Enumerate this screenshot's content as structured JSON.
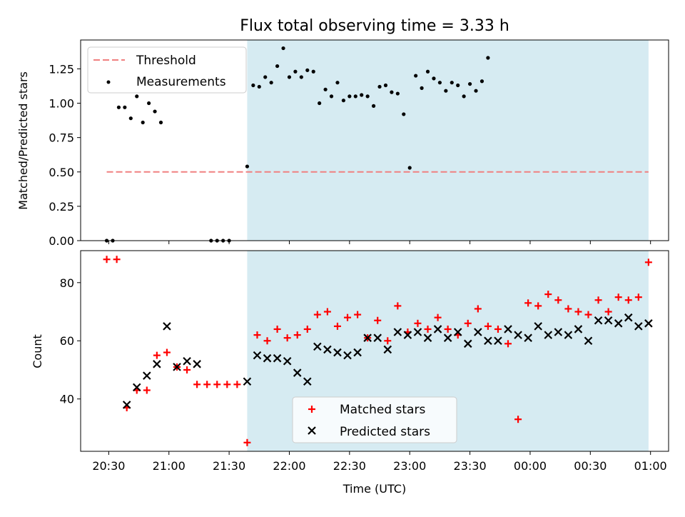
{
  "chart_data": [
    {
      "type": "scatter",
      "title": "Flux total observing time = 3.33 h",
      "ylabel": "Matched/Predicted stars",
      "xlabel": "",
      "xlim": [
        "20:16",
        "01:09"
      ],
      "ylim": [
        0,
        1.46
      ],
      "y_ticks": [
        "0.00",
        "0.25",
        "0.50",
        "0.75",
        "1.00",
        "1.25"
      ],
      "highlight_span": {
        "start": "21:39",
        "end": "00:59",
        "color": "#add8e6"
      },
      "threshold": {
        "name": "Threshold",
        "value": 0.5,
        "x_start": "20:29",
        "x_end": "00:59",
        "color": "#f08080"
      },
      "legend": {
        "position": "upper left",
        "entries": [
          "Threshold",
          "Measurements"
        ]
      },
      "series": [
        {
          "name": "Measurements",
          "color": "#000000",
          "points": [
            [
              "20:29",
              0.0
            ],
            [
              "20:32",
              0.0
            ],
            [
              "20:35",
              0.97
            ],
            [
              "20:38",
              0.97
            ],
            [
              "20:41",
              0.89
            ],
            [
              "20:44",
              1.05
            ],
            [
              "20:47",
              0.86
            ],
            [
              "20:50",
              1.0
            ],
            [
              "20:53",
              0.94
            ],
            [
              "20:56",
              0.86
            ],
            [
              "21:21",
              0.0
            ],
            [
              "21:24",
              0.0
            ],
            [
              "21:27",
              0.0
            ],
            [
              "21:30",
              0.0
            ],
            [
              "21:39",
              0.54
            ],
            [
              "21:42",
              1.13
            ],
            [
              "21:45",
              1.12
            ],
            [
              "21:48",
              1.19
            ],
            [
              "21:51",
              1.15
            ],
            [
              "21:54",
              1.27
            ],
            [
              "21:57",
              1.4
            ],
            [
              "22:00",
              1.19
            ],
            [
              "22:03",
              1.23
            ],
            [
              "22:06",
              1.19
            ],
            [
              "22:09",
              1.24
            ],
            [
              "22:12",
              1.23
            ],
            [
              "22:15",
              1.0
            ],
            [
              "22:18",
              1.1
            ],
            [
              "22:21",
              1.05
            ],
            [
              "22:24",
              1.15
            ],
            [
              "22:27",
              1.02
            ],
            [
              "22:30",
              1.05
            ],
            [
              "22:33",
              1.05
            ],
            [
              "22:36",
              1.06
            ],
            [
              "22:39",
              1.05
            ],
            [
              "22:42",
              0.98
            ],
            [
              "22:45",
              1.12
            ],
            [
              "22:48",
              1.13
            ],
            [
              "22:51",
              1.08
            ],
            [
              "22:54",
              1.07
            ],
            [
              "22:57",
              0.92
            ],
            [
              "23:00",
              0.53
            ],
            [
              "23:03",
              1.2
            ],
            [
              "23:06",
              1.11
            ],
            [
              "23:09",
              1.23
            ],
            [
              "23:12",
              1.18
            ],
            [
              "23:15",
              1.15
            ],
            [
              "23:18",
              1.09
            ],
            [
              "23:21",
              1.15
            ],
            [
              "23:24",
              1.13
            ],
            [
              "23:27",
              1.05
            ],
            [
              "23:30",
              1.14
            ],
            [
              "23:33",
              1.09
            ],
            [
              "23:36",
              1.16
            ],
            [
              "23:39",
              1.33
            ]
          ]
        }
      ]
    },
    {
      "type": "scatter",
      "title": "",
      "ylabel": "Count",
      "xlabel": "Time (UTC)",
      "xlim": [
        "20:16",
        "01:09"
      ],
      "ylim": [
        22,
        91
      ],
      "y_ticks": [
        "40",
        "60",
        "80"
      ],
      "x_ticks": [
        "20:30",
        "21:00",
        "21:30",
        "22:00",
        "22:30",
        "23:00",
        "23:30",
        "00:00",
        "00:30",
        "01:00"
      ],
      "highlight_span": {
        "start": "21:39",
        "end": "00:59",
        "color": "#add8e6"
      },
      "legend": {
        "position": "lower center",
        "entries": [
          "Matched stars",
          "Predicted stars"
        ]
      },
      "series": [
        {
          "name": "Matched stars",
          "marker": "+",
          "color": "#ff0000",
          "points": [
            [
              "20:29",
              88
            ],
            [
              "20:34",
              88
            ],
            [
              "20:39",
              37
            ],
            [
              "20:44",
              43
            ],
            [
              "20:49",
              43
            ],
            [
              "20:54",
              55
            ],
            [
              "20:59",
              56
            ],
            [
              "21:04",
              51
            ],
            [
              "21:09",
              50
            ],
            [
              "21:14",
              45
            ],
            [
              "21:19",
              45
            ],
            [
              "21:24",
              45
            ],
            [
              "21:29",
              45
            ],
            [
              "21:34",
              45
            ],
            [
              "21:39",
              25
            ],
            [
              "21:44",
              62
            ],
            [
              "21:49",
              60
            ],
            [
              "21:54",
              64
            ],
            [
              "21:59",
              61
            ],
            [
              "22:04",
              62
            ],
            [
              "22:09",
              64
            ],
            [
              "22:14",
              69
            ],
            [
              "22:19",
              70
            ],
            [
              "22:24",
              65
            ],
            [
              "22:29",
              68
            ],
            [
              "22:34",
              69
            ],
            [
              "22:39",
              61
            ],
            [
              "22:44",
              67
            ],
            [
              "22:49",
              60
            ],
            [
              "22:54",
              72
            ],
            [
              "22:59",
              63
            ],
            [
              "23:04",
              66
            ],
            [
              "23:09",
              64
            ],
            [
              "23:14",
              68
            ],
            [
              "23:19",
              64
            ],
            [
              "23:24",
              62
            ],
            [
              "23:29",
              66
            ],
            [
              "23:34",
              71
            ],
            [
              "23:39",
              65
            ],
            [
              "23:44",
              64
            ],
            [
              "23:49",
              59
            ],
            [
              "23:54",
              33
            ],
            [
              "23:59",
              73
            ],
            [
              "00:04",
              72
            ],
            [
              "00:09",
              76
            ],
            [
              "00:14",
              74
            ],
            [
              "00:19",
              71
            ],
            [
              "00:24",
              70
            ],
            [
              "00:29",
              69
            ],
            [
              "00:34",
              74
            ],
            [
              "00:39",
              70
            ],
            [
              "00:44",
              75
            ],
            [
              "00:49",
              74
            ],
            [
              "00:54",
              75
            ],
            [
              "00:59",
              87
            ]
          ]
        },
        {
          "name": "Predicted stars",
          "marker": "x",
          "color": "#000000",
          "points": [
            [
              "20:39",
              38
            ],
            [
              "20:44",
              44
            ],
            [
              "20:49",
              48
            ],
            [
              "20:54",
              52
            ],
            [
              "20:59",
              65
            ],
            [
              "21:04",
              51
            ],
            [
              "21:09",
              53
            ],
            [
              "21:14",
              52
            ],
            [
              "21:39",
              46
            ],
            [
              "21:44",
              55
            ],
            [
              "21:49",
              54
            ],
            [
              "21:54",
              54
            ],
            [
              "21:59",
              53
            ],
            [
              "22:04",
              49
            ],
            [
              "22:09",
              46
            ],
            [
              "22:14",
              58
            ],
            [
              "22:19",
              57
            ],
            [
              "22:24",
              56
            ],
            [
              "22:29",
              55
            ],
            [
              "22:34",
              56
            ],
            [
              "22:39",
              61
            ],
            [
              "22:44",
              61
            ],
            [
              "22:49",
              57
            ],
            [
              "22:54",
              63
            ],
            [
              "22:59",
              62
            ],
            [
              "23:04",
              63
            ],
            [
              "23:09",
              61
            ],
            [
              "23:14",
              64
            ],
            [
              "23:19",
              61
            ],
            [
              "23:24",
              63
            ],
            [
              "23:29",
              59
            ],
            [
              "23:34",
              63
            ],
            [
              "23:39",
              60
            ],
            [
              "23:44",
              60
            ],
            [
              "23:49",
              64
            ],
            [
              "23:54",
              62
            ],
            [
              "23:59",
              61
            ],
            [
              "00:04",
              65
            ],
            [
              "00:09",
              62
            ],
            [
              "00:14",
              63
            ],
            [
              "00:19",
              62
            ],
            [
              "00:24",
              64
            ],
            [
              "00:29",
              60
            ],
            [
              "00:34",
              67
            ],
            [
              "00:39",
              67
            ],
            [
              "00:44",
              66
            ],
            [
              "00:49",
              68
            ],
            [
              "00:54",
              65
            ],
            [
              "00:59",
              66
            ]
          ]
        }
      ]
    }
  ]
}
